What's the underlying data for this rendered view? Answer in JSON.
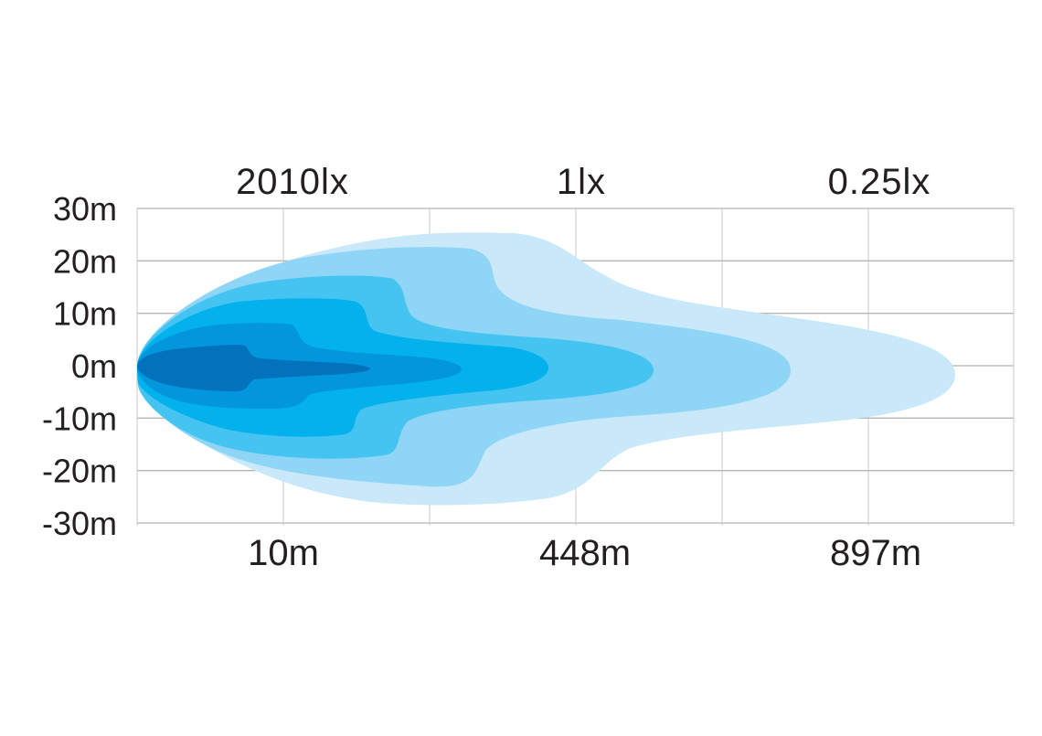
{
  "chart_data": {
    "type": "area",
    "title": "",
    "xlabel": "",
    "ylabel": "",
    "y_ticks": [
      "30m",
      "20m",
      "10m",
      "0m",
      "-10m",
      "-20m",
      "-30m"
    ],
    "ylim": [
      -30,
      30
    ],
    "bottom_labels": [
      "10m",
      "448m",
      "897m"
    ],
    "top_labels": [
      "2010lx",
      "1lx",
      "0.25lx"
    ],
    "grid": true,
    "colors": [
      "#c9e9fa",
      "#8fd5f6",
      "#45c4f2",
      "#03b1ec",
      "#0296dc",
      "#0272bd"
    ],
    "levels": [
      {
        "level": 1,
        "color": "#c9e9fa"
      },
      {
        "level": 2,
        "color": "#8fd5f6"
      },
      {
        "level": 3,
        "color": "#45c4f2"
      },
      {
        "level": 4,
        "color": "#03b1ec"
      },
      {
        "level": 5,
        "color": "#0296dc"
      },
      {
        "level": 6,
        "color": "#0272bd"
      }
    ]
  }
}
